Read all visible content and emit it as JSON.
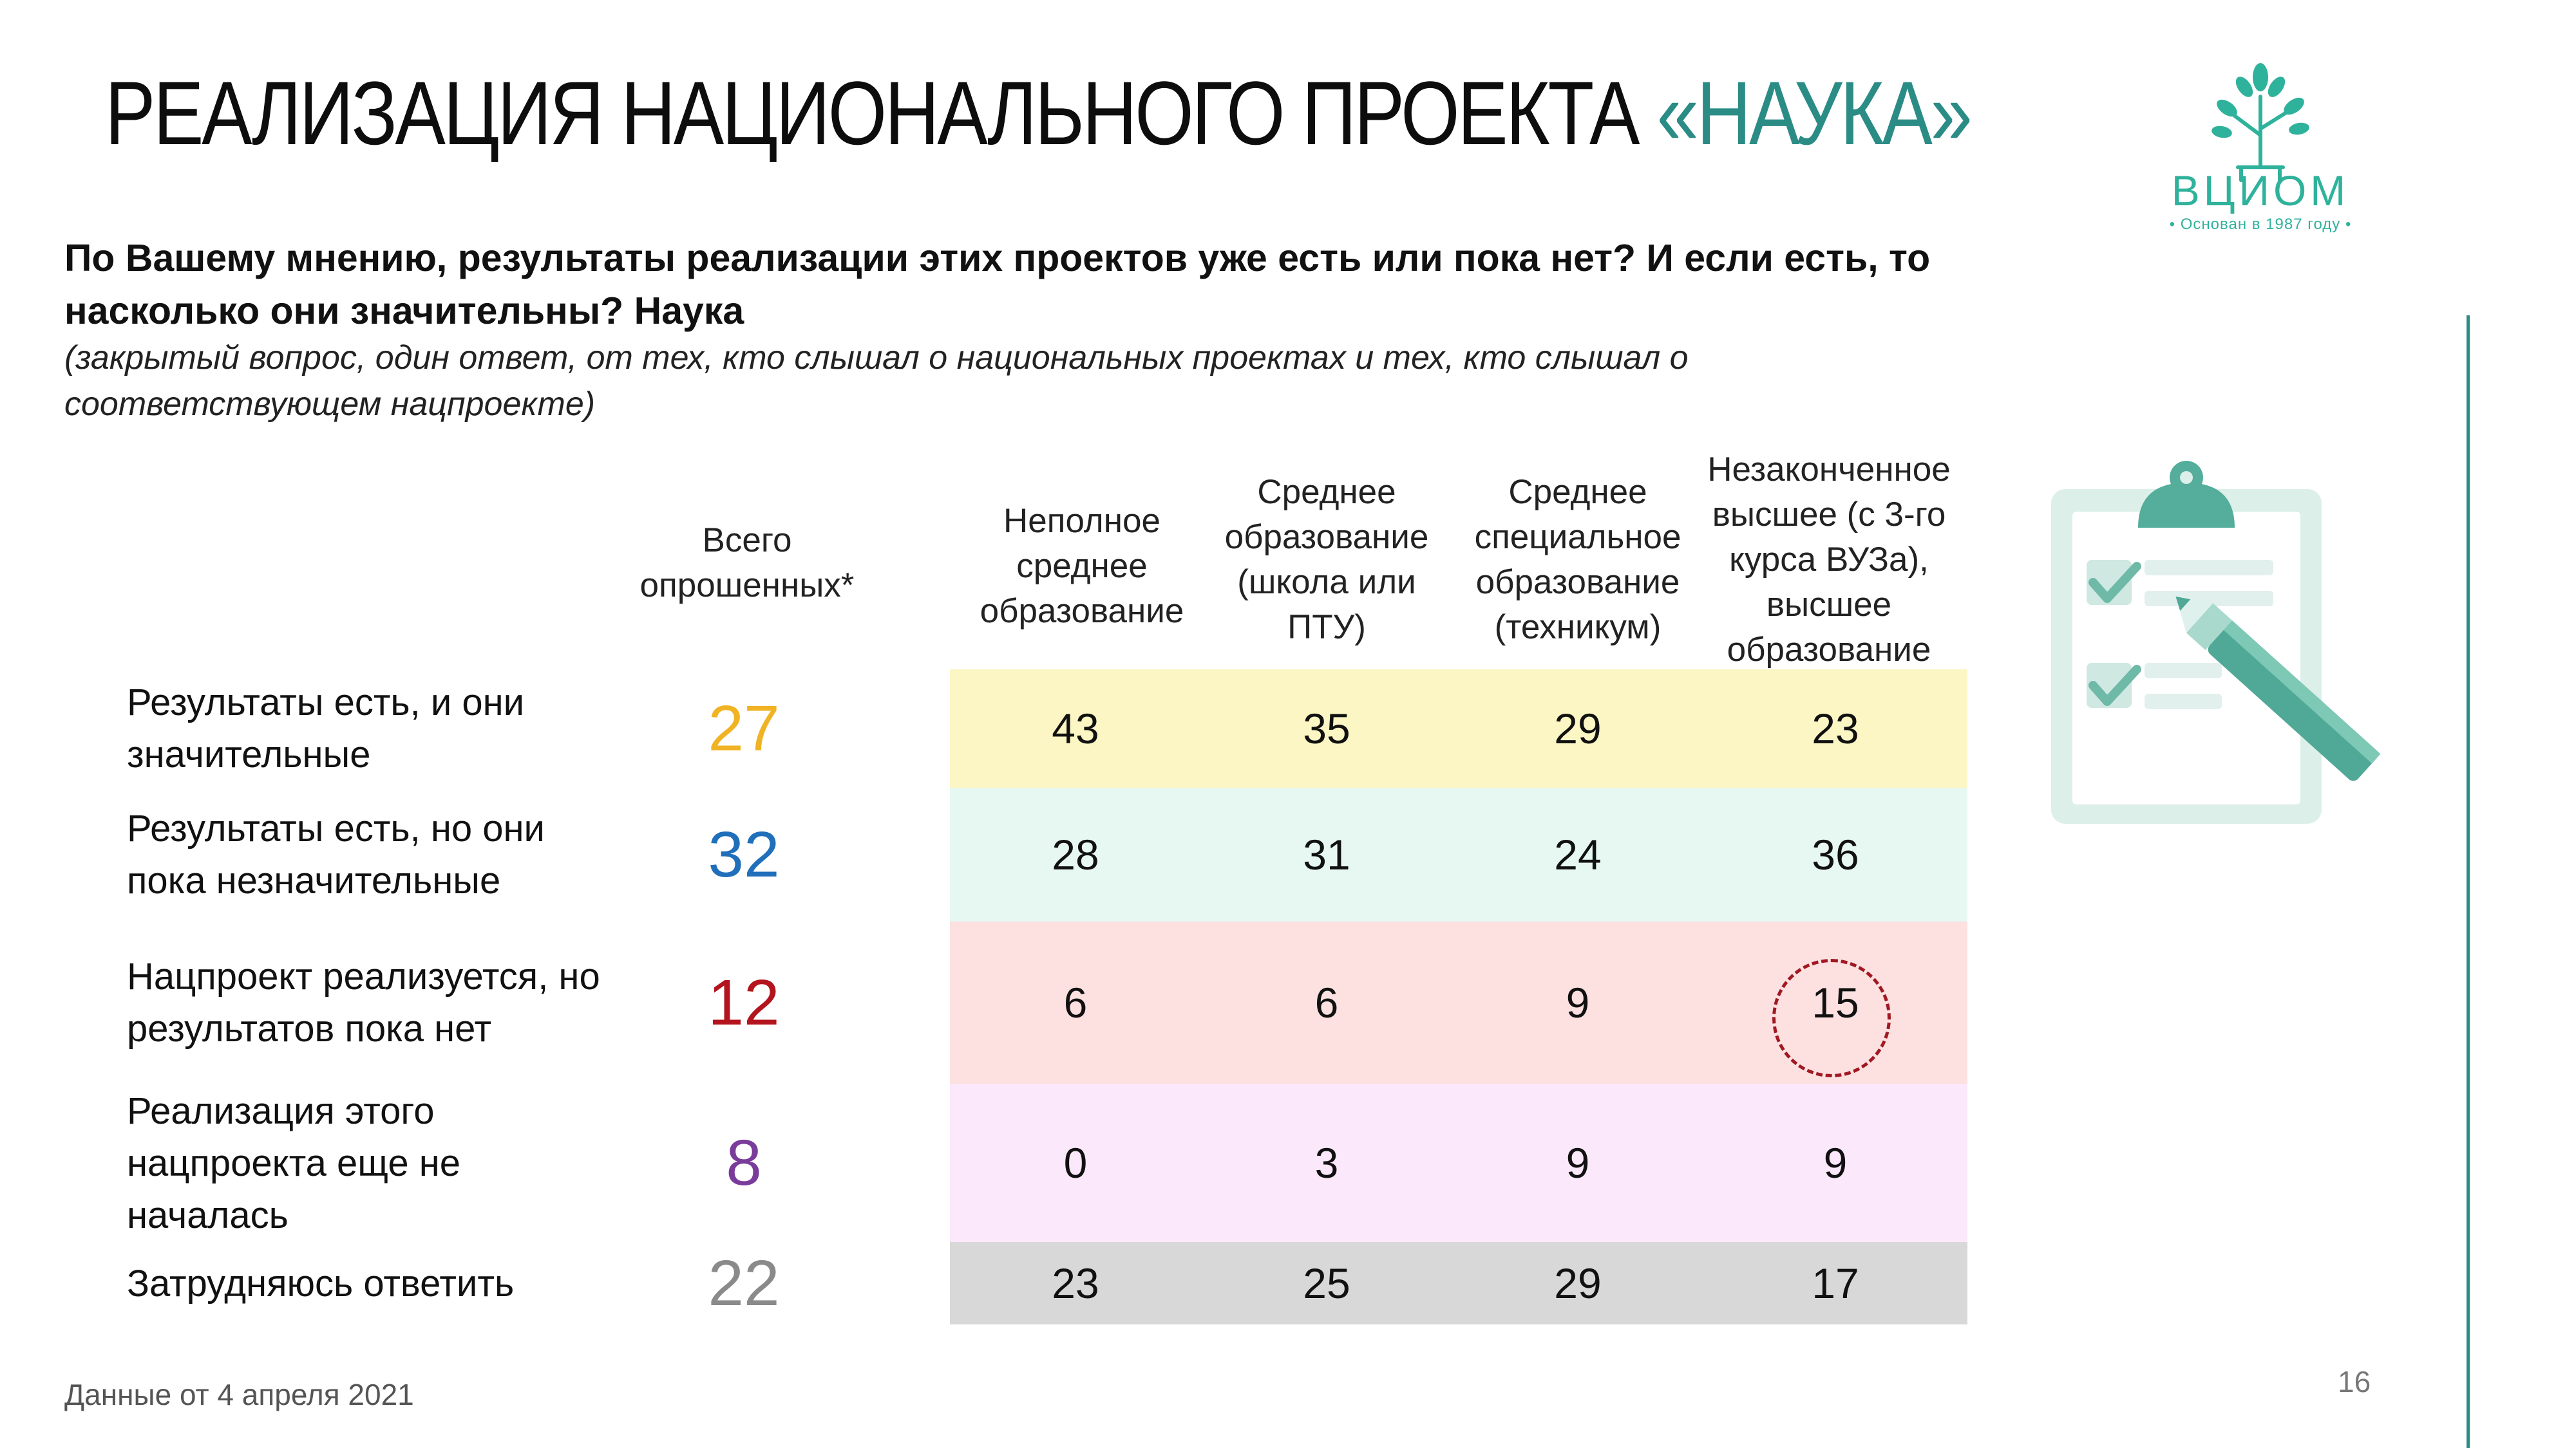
{
  "title": {
    "main": "РЕАЛИЗАЦИЯ НАЦИОНАЛЬНОГО ПРОЕКТА ",
    "accent": "«НАУКА»"
  },
  "question": "По Вашему мнению, результаты реализации этих проектов уже есть или пока нет? И если есть, то насколько они значительны? Наука",
  "note": "(закрытый вопрос, один ответ, от тех, кто слышал о национальных проектах и тех, кто слышал о соответствующем нацпроекте)",
  "logo": {
    "name": "ВЦИОМ",
    "tagline": "• Основан в 1987 году •",
    "icon": "tree-logo-icon"
  },
  "table": {
    "headers": {
      "total": "Всего опрошенных*",
      "col1": "Неполное среднее образование",
      "col2": "Среднее образование (школа или ПТУ)",
      "col3": "Среднее специальное образование (техникум)",
      "col4": "Незаконченное высшее (с 3-го курса ВУЗа), высшее образование"
    },
    "rows": [
      {
        "label": "Результаты есть, и они значительные",
        "total": "27",
        "c1": "43",
        "c2": "35",
        "c3": "29",
        "c4": "23",
        "total_color": "#f0b323",
        "bg": "#fcf6c4"
      },
      {
        "label": "Результаты есть, но они пока незначительные",
        "total": "32",
        "c1": "28",
        "c2": "31",
        "c3": "24",
        "c4": "36",
        "total_color": "#1f6fba",
        "bg": "#e6f8f1"
      },
      {
        "label": "Нацпроект реализуется, но результатов пока нет",
        "total": "12",
        "c1": "6",
        "c2": "6",
        "c3": "9",
        "c4": "15",
        "total_color": "#b3141d",
        "bg": "#fde0e0"
      },
      {
        "label": "Реализация этого нацпроекта еще не началась",
        "total": "8",
        "c1": "0",
        "c2": "3",
        "c3": "9",
        "c4": "9",
        "total_color": "#7a3c9a",
        "bg": "#fbe8fb"
      },
      {
        "label": "Затрудняюсь ответить",
        "total": "22",
        "c1": "23",
        "c2": "25",
        "c3": "29",
        "c4": "17",
        "total_color": "#8a8a8a",
        "bg": "#d8d8d8"
      }
    ]
  },
  "footer": {
    "date": "Данные от 4 апреля 2021",
    "page": "16"
  },
  "colors": {
    "accent": "#2b8c86",
    "logo": "#2fb29b",
    "highlight": "#a01822"
  },
  "icons": [
    "tree-logo-icon",
    "clipboard-checklist-icon"
  ]
}
